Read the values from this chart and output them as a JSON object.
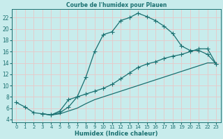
{
  "title": "Courbe de l'humidex pour Plauen",
  "xlabel": "Humidex (Indice chaleur)",
  "bg_color": "#c8ecec",
  "line_color": "#1a7070",
  "grid_color": "#e8c8c8",
  "xlim": [
    -0.5,
    23.5
  ],
  "ylim": [
    3.5,
    23.5
  ],
  "xticks": [
    0,
    1,
    2,
    3,
    4,
    5,
    6,
    7,
    8,
    9,
    10,
    11,
    12,
    13,
    14,
    15,
    16,
    17,
    18,
    19,
    20,
    21,
    22,
    23
  ],
  "yticks": [
    4,
    6,
    8,
    10,
    12,
    14,
    16,
    18,
    20,
    22
  ],
  "line1_x": [
    0,
    1,
    2,
    3,
    4,
    5,
    6,
    7,
    8,
    9,
    10,
    11,
    12,
    13,
    14,
    15,
    16,
    17,
    18,
    19,
    20,
    21,
    22,
    23
  ],
  "line1_y": [
    7,
    6.2,
    5.2,
    5.0,
    4.8,
    5.2,
    6.2,
    8.0,
    11.5,
    16.0,
    19.0,
    19.5,
    21.5,
    22.0,
    22.8,
    22.2,
    21.5,
    20.5,
    19.2,
    17.0,
    16.2,
    16.2,
    15.5,
    13.8
  ],
  "line2_x": [
    3,
    4,
    5,
    6,
    7,
    8,
    9,
    10,
    11,
    12,
    13,
    14,
    15,
    16,
    17,
    18,
    19,
    20,
    21,
    22,
    23
  ],
  "line2_y": [
    5.0,
    4.8,
    5.5,
    7.5,
    8.0,
    8.5,
    9.0,
    9.5,
    10.2,
    11.2,
    12.2,
    13.2,
    13.8,
    14.2,
    14.8,
    15.2,
    15.5,
    16.0,
    16.5,
    16.5,
    13.8
  ],
  "line3_x": [
    3,
    4,
    5,
    6,
    7,
    8,
    9,
    10,
    11,
    12,
    13,
    14,
    15,
    16,
    17,
    18,
    19,
    20,
    21,
    22,
    23
  ],
  "line3_y": [
    5.0,
    4.8,
    5.0,
    5.5,
    6.0,
    6.8,
    7.5,
    8.0,
    8.5,
    9.0,
    9.5,
    10.0,
    10.5,
    11.0,
    11.5,
    12.0,
    12.5,
    13.0,
    13.5,
    14.0,
    14.0
  ]
}
